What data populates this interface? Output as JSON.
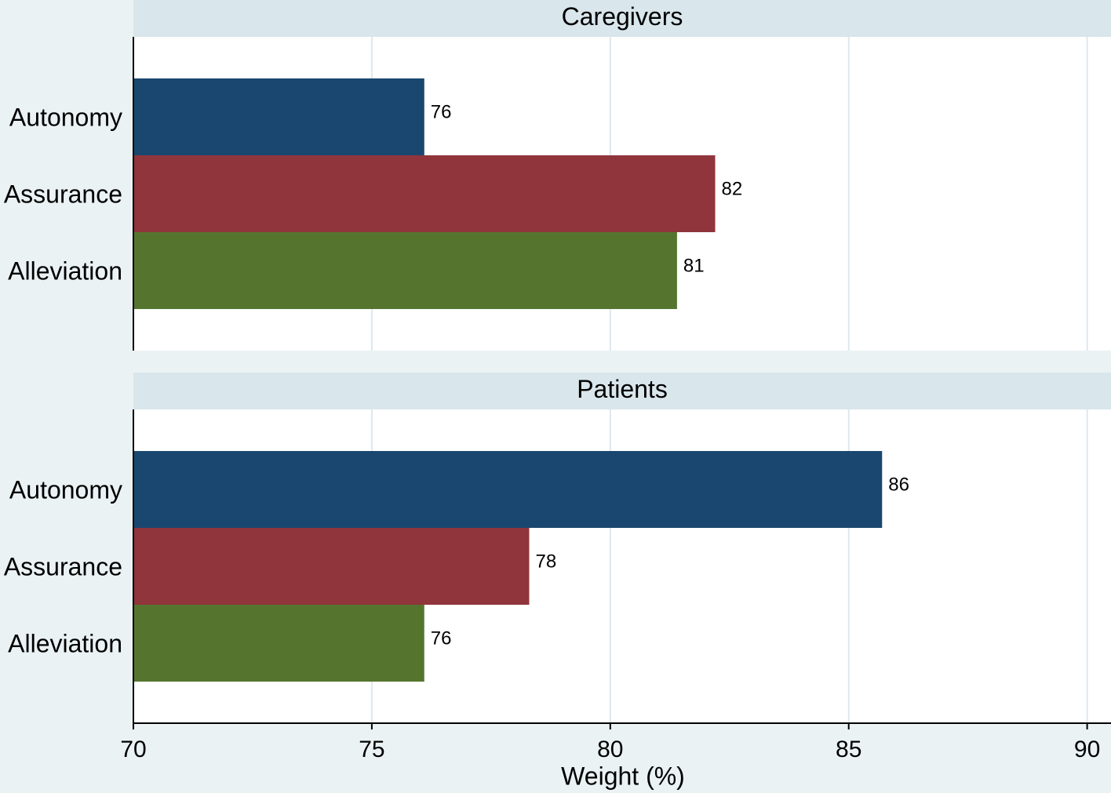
{
  "chart_data": {
    "type": "bar",
    "orientation": "horizontal",
    "categories": [
      "Autonomy",
      "Assurance",
      "Alleviation"
    ],
    "colors": [
      "#1a476f",
      "#90353b",
      "#55752f"
    ],
    "xlim": [
      70,
      90.5
    ],
    "xticks": [
      70,
      75,
      80,
      85,
      90
    ],
    "xlabel": "Weight (%)",
    "grid": true,
    "panels": [
      {
        "title": "Caregivers",
        "values": [
          76.1,
          82.2,
          81.4
        ],
        "value_labels": [
          "76",
          "82",
          "81"
        ]
      },
      {
        "title": "Patients",
        "values": [
          85.7,
          78.3,
          76.1
        ],
        "value_labels": [
          "86",
          "78",
          "76"
        ]
      }
    ]
  }
}
